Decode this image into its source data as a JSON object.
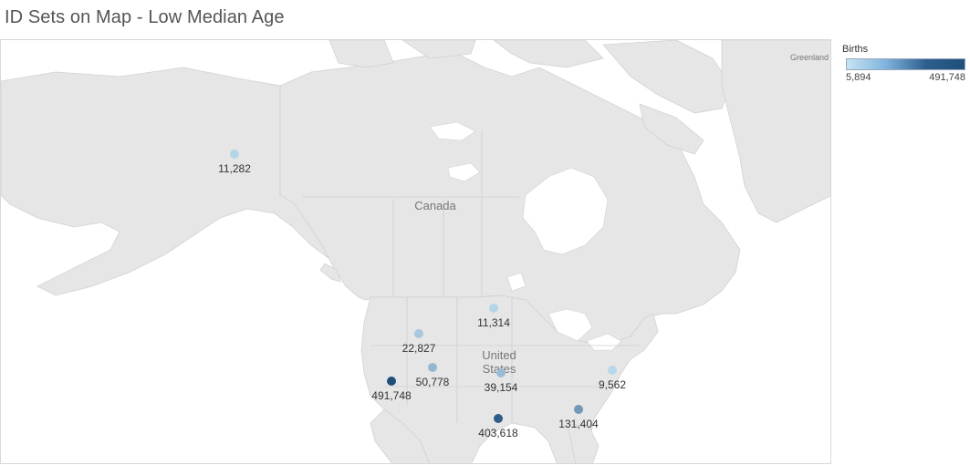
{
  "title": "ID Sets on Map - Low Median Age",
  "legend": {
    "title": "Births",
    "min_label": "5,894",
    "max_label": "491,748",
    "min": 5894,
    "max": 491748,
    "color_low": "#c6e4f5",
    "color_high": "#1e4f7b"
  },
  "map": {
    "country_labels": [
      {
        "name": "canada",
        "text": "Canada"
      },
      {
        "name": "united-states",
        "text": "United States"
      },
      {
        "name": "greenland",
        "text": "Greenland"
      }
    ],
    "points": [
      {
        "id": "alaska",
        "label": "11,282",
        "value": 11282
      },
      {
        "id": "north-dakota",
        "label": "11,314",
        "value": 11314
      },
      {
        "id": "idaho",
        "label": "22,827",
        "value": 22827
      },
      {
        "id": "utah",
        "label": "50,778",
        "value": 50778
      },
      {
        "id": "california",
        "label": "491,748",
        "value": 491748
      },
      {
        "id": "oklahoma",
        "label": "39,154",
        "value": 39154
      },
      {
        "id": "south-carolina",
        "label": "9,562",
        "value": 9562
      },
      {
        "id": "georgia",
        "label": "131,404",
        "value": 131404
      },
      {
        "id": "texas",
        "label": "403,618",
        "value": 403618
      }
    ]
  }
}
